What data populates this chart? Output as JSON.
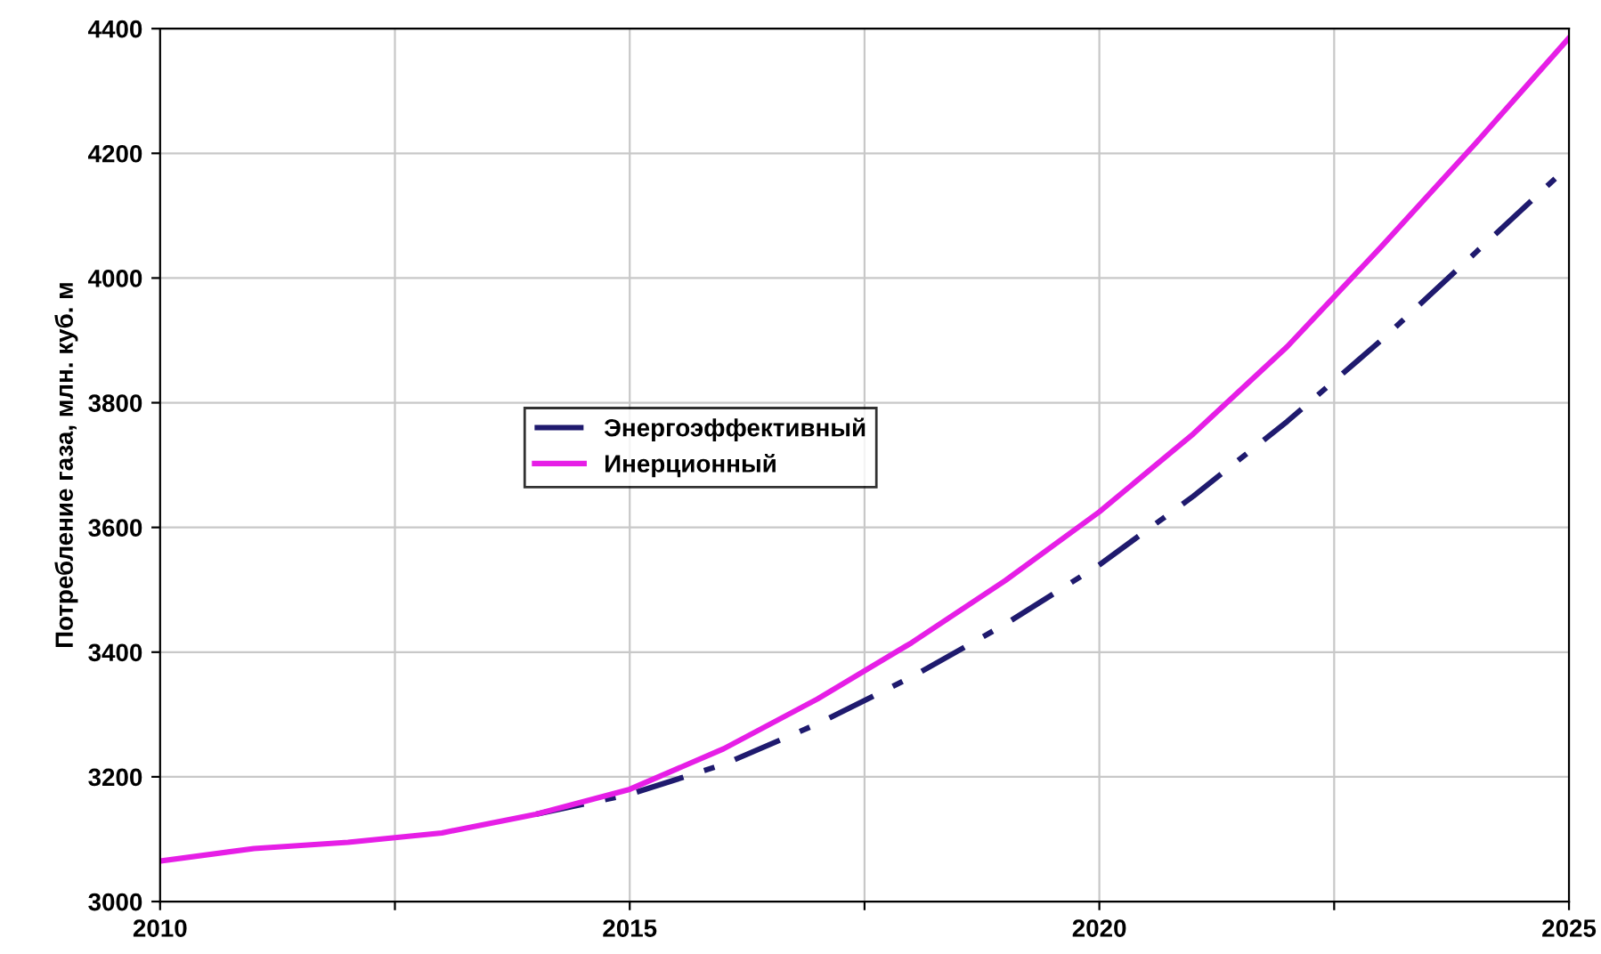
{
  "chart_data": {
    "type": "line",
    "ylabel": "Потребление газа, млн. куб. м",
    "x": [
      2010,
      2011,
      2012,
      2013,
      2014,
      2015,
      2016,
      2017,
      2018,
      2019,
      2020,
      2021,
      2022,
      2023,
      2024,
      2025
    ],
    "series": [
      {
        "name": "Энергоэффективный",
        "color": "#1f1a6e",
        "line_style": "dashed",
        "values": [
          null,
          null,
          null,
          null,
          3140,
          3172,
          3220,
          3285,
          3360,
          3445,
          3540,
          3650,
          3770,
          3900,
          4040,
          4180
        ]
      },
      {
        "name": "Инерционный",
        "color": "#e61ee6",
        "line_style": "solid",
        "values": [
          3065,
          3085,
          3095,
          3110,
          3140,
          3180,
          3245,
          3325,
          3415,
          3515,
          3625,
          3750,
          3890,
          4050,
          4215,
          4385
        ]
      }
    ],
    "xlim": [
      2010,
      2025
    ],
    "xticks": [
      2010,
      {
        "value": 2012.5,
        "label": null
      },
      2015,
      {
        "value": 2017.5,
        "label": null
      },
      2020,
      {
        "value": 2022.5,
        "label": null
      },
      2025
    ],
    "ylim": [
      3000,
      4400
    ],
    "yticks": [
      3000,
      3200,
      3400,
      3600,
      3800,
      4000,
      4200,
      4400
    ],
    "grid": true,
    "legend": "center left",
    "marker": "none"
  }
}
